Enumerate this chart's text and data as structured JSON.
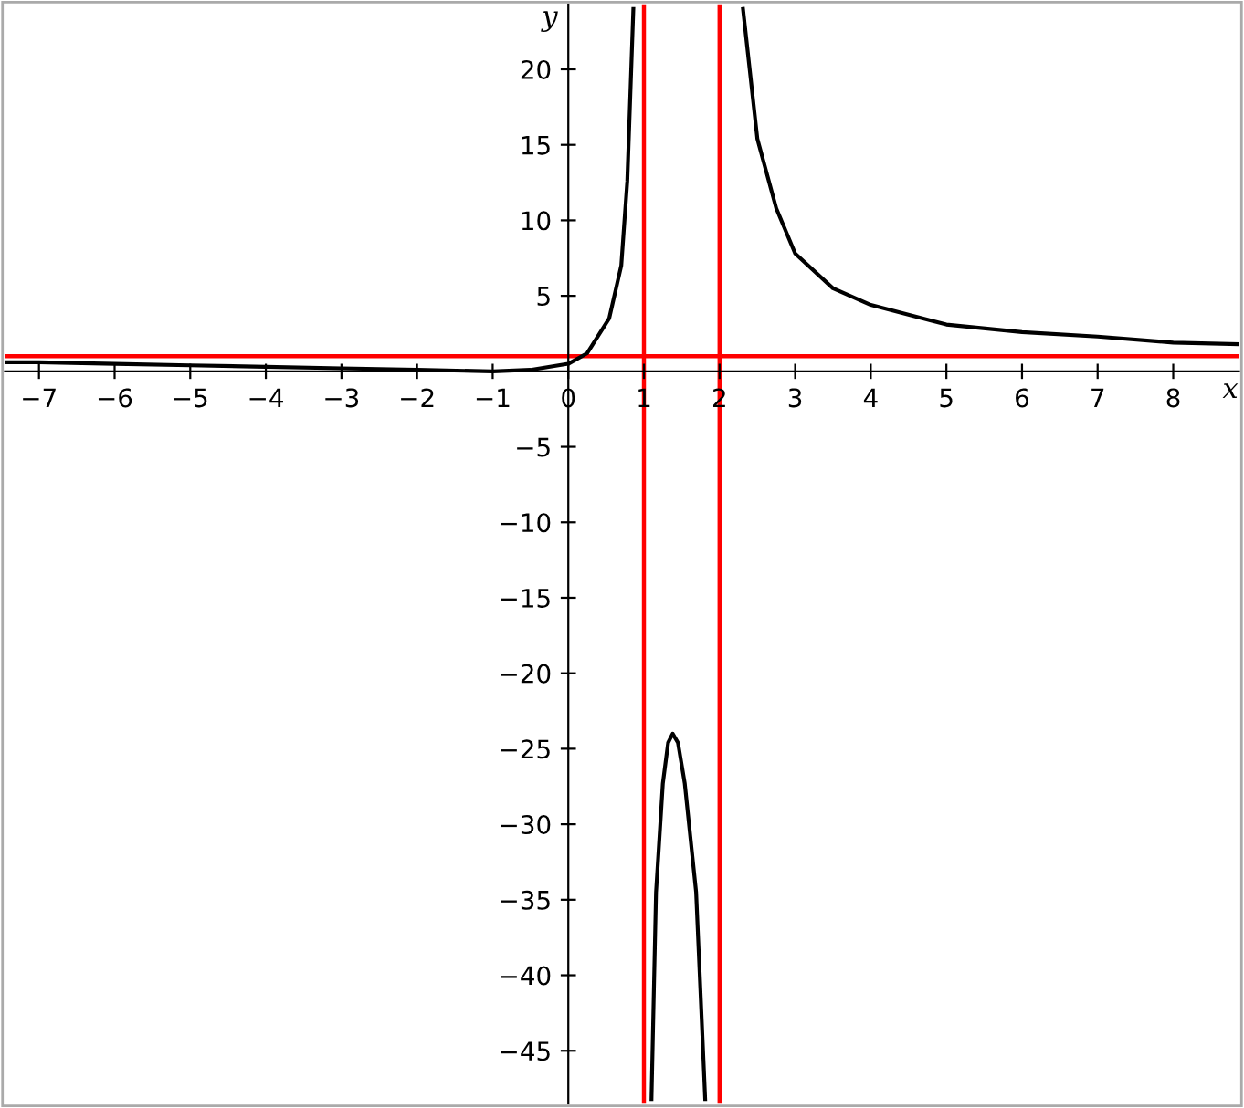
{
  "chart_data": {
    "type": "line",
    "xlabel": "x",
    "ylabel": "y",
    "xlim": [
      -7.45,
      8.87
    ],
    "ylim": [
      -48.5,
      24.3
    ],
    "xticks": [
      {
        "value": -7,
        "label": "−7"
      },
      {
        "value": -6,
        "label": "−6"
      },
      {
        "value": -5,
        "label": "−5"
      },
      {
        "value": -4,
        "label": "−4"
      },
      {
        "value": -3,
        "label": "−3"
      },
      {
        "value": -2,
        "label": "−2"
      },
      {
        "value": -1,
        "label": "−1"
      },
      0,
      1,
      2,
      3,
      4,
      5,
      6,
      7,
      8
    ],
    "yticks": [
      {
        "value": -45,
        "label": "−45"
      },
      {
        "value": -40,
        "label": "−40"
      },
      {
        "value": -35,
        "label": "−35"
      },
      {
        "value": -30,
        "label": "−30"
      },
      {
        "value": -25,
        "label": "−25"
      },
      {
        "value": -20,
        "label": "−20"
      },
      {
        "value": -15,
        "label": "−15"
      },
      {
        "value": -10,
        "label": "−10"
      },
      {
        "value": -5,
        "label": "−5"
      },
      5,
      10,
      15,
      20
    ],
    "series": [
      {
        "color": "#000000",
        "x": [
          -7.45,
          -7,
          -6,
          -5,
          -4,
          -3,
          -2,
          -1,
          -0.5,
          0,
          0.25,
          0.54,
          0.7,
          0.78,
          0.86
        ],
        "values": [
          0.6,
          0.6,
          0.5,
          0.4,
          0.3,
          0.2,
          0.1,
          0,
          0.1,
          0.5,
          1.2,
          3.5,
          7,
          12.6,
          24
        ]
      },
      {
        "color": "#000000",
        "x": [
          1.1,
          1.16,
          1.25,
          1.32,
          1.38,
          1.45,
          1.54,
          1.69,
          1.81
        ],
        "values": [
          -48.2,
          -34.5,
          -27.3,
          -24.6,
          -24,
          -24.6,
          -27.3,
          -34.5,
          -48.2
        ]
      },
      {
        "color": "#000000",
        "x": [
          2.31,
          2.5,
          2.75,
          3,
          3.5,
          4,
          5,
          6,
          7,
          8,
          8.87
        ],
        "values": [
          24,
          15.4,
          10.8,
          7.8,
          5.5,
          4.4,
          3.1,
          2.6,
          2.3,
          1.9,
          1.8
        ]
      }
    ],
    "ref_lines": [
      {
        "axis": "x",
        "value": 1,
        "color": "#ff0000"
      },
      {
        "axis": "x",
        "value": 2,
        "color": "#ff0000"
      },
      {
        "axis": "y",
        "value": 1,
        "color": "#ff0000"
      }
    ],
    "grid": false,
    "marker": "none",
    "line_style": "solid"
  }
}
